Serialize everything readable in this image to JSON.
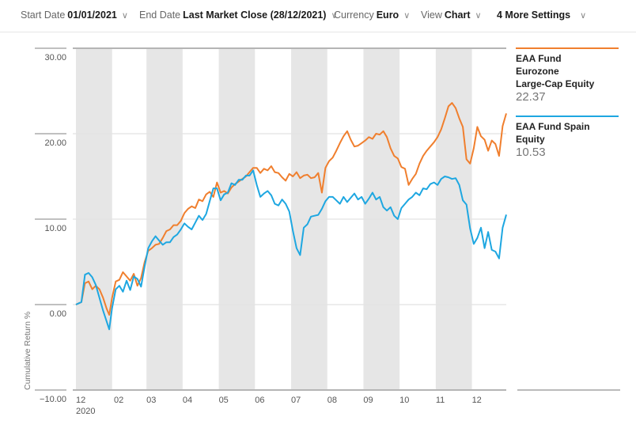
{
  "toolbar": {
    "start_date": {
      "label": "Start Date",
      "value": "01/01/2021"
    },
    "end_date": {
      "label": "End Date",
      "value": "Last Market Close (28/12/2021)"
    },
    "currency": {
      "label": "Currency",
      "value": "Euro"
    },
    "view": {
      "label": "View",
      "value": "Chart"
    },
    "more_settings": {
      "label": "4 More Settings"
    },
    "chevron": "∨"
  },
  "legend": [
    {
      "name": "EAA Fund Eurozone Large-Cap Equity",
      "name_lines": [
        "EAA Fund",
        "Eurozone",
        "Large-Cap Equity"
      ],
      "value": "22.37",
      "color": "#f07f2e"
    },
    {
      "name": "EAA Fund Spain Equity",
      "name_lines": [
        "EAA Fund Spain",
        "Equity"
      ],
      "value": "10.53",
      "color": "#1ea7e1"
    }
  ],
  "chart_data": {
    "type": "line",
    "title": "",
    "xlabel": "",
    "ylabel": "Cumulative Return %",
    "ylim": [
      -10,
      30
    ],
    "yticks": [
      "30.00",
      "20.00",
      "10.00",
      "0.00",
      "−10.00"
    ],
    "ytick_values": [
      30,
      20,
      10,
      0,
      -10
    ],
    "xticks": [
      "12",
      "02",
      "03",
      "04",
      "05",
      "06",
      "07",
      "08",
      "09",
      "10",
      "11",
      "12"
    ],
    "xtick_sublabel": "2020",
    "xtick_positions_months": [
      0,
      1.05,
      1.95,
      2.95,
      3.95,
      4.95,
      5.95,
      6.95,
      7.95,
      8.95,
      9.95,
      10.95
    ],
    "xlim_months": [
      0,
      11.9
    ],
    "shaded_months": [
      [
        0,
        1.0
      ],
      [
        1.95,
        2.95
      ],
      [
        3.95,
        4.95
      ],
      [
        5.95,
        6.95
      ],
      [
        7.95,
        8.95
      ],
      [
        9.95,
        10.95
      ]
    ],
    "grid": true,
    "legend_position": "right",
    "series": [
      {
        "name": "EAA Fund Eurozone Large-Cap Equity",
        "color": "#f07f2e",
        "x": [
          0,
          0.15,
          0.25,
          0.35,
          0.45,
          0.55,
          0.65,
          0.75,
          0.85,
          0.92,
          1.0,
          1.1,
          1.2,
          1.3,
          1.4,
          1.5,
          1.6,
          1.7,
          1.8,
          1.9,
          2.0,
          2.1,
          2.2,
          2.3,
          2.4,
          2.5,
          2.6,
          2.7,
          2.8,
          2.9,
          3.0,
          3.1,
          3.2,
          3.3,
          3.4,
          3.5,
          3.6,
          3.7,
          3.8,
          3.9,
          4.0,
          4.1,
          4.2,
          4.3,
          4.4,
          4.5,
          4.6,
          4.7,
          4.8,
          4.9,
          5.0,
          5.1,
          5.2,
          5.3,
          5.4,
          5.5,
          5.6,
          5.7,
          5.8,
          5.9,
          6.0,
          6.1,
          6.2,
          6.3,
          6.4,
          6.5,
          6.6,
          6.7,
          6.8,
          6.9,
          7.0,
          7.1,
          7.2,
          7.3,
          7.4,
          7.5,
          7.6,
          7.7,
          7.8,
          7.9,
          8.0,
          8.1,
          8.2,
          8.3,
          8.4,
          8.5,
          8.6,
          8.7,
          8.8,
          8.9,
          9.0,
          9.1,
          9.2,
          9.3,
          9.4,
          9.5,
          9.6,
          9.7,
          9.8,
          9.9,
          10.0,
          10.1,
          10.2,
          10.3,
          10.4,
          10.5,
          10.6,
          10.7,
          10.8,
          10.9,
          11.0,
          11.1,
          11.2,
          11.3,
          11.4,
          11.5,
          11.6,
          11.7,
          11.8,
          11.9
        ],
        "values": [
          0,
          0.3,
          2.5,
          2.7,
          1.8,
          2.2,
          1.8,
          0.8,
          -0.5,
          -1.2,
          0.8,
          2.7,
          2.9,
          3.8,
          3.3,
          2.8,
          3.6,
          2.2,
          3.1,
          5.0,
          6.3,
          6.6,
          7.0,
          7.1,
          7.8,
          8.6,
          8.8,
          9.3,
          9.3,
          9.8,
          10.7,
          11.2,
          11.5,
          11.3,
          12.3,
          12.1,
          12.9,
          13.2,
          12.6,
          14.3,
          13.1,
          13.3,
          13.0,
          13.7,
          14.1,
          14.4,
          14.7,
          15.0,
          15.5,
          16.0,
          16.0,
          15.4,
          15.9,
          15.7,
          16.2,
          15.5,
          15.4,
          14.9,
          14.5,
          15.3,
          15.0,
          15.5,
          14.8,
          15.1,
          15.2,
          14.8,
          14.9,
          15.4,
          13.1,
          16.0,
          16.8,
          17.2,
          18.0,
          18.9,
          19.7,
          20.3,
          19.3,
          18.5,
          18.6,
          18.9,
          19.2,
          19.6,
          19.4,
          20.0,
          19.9,
          20.3,
          19.6,
          18.3,
          17.4,
          17.1,
          16.1,
          15.9,
          14.0,
          14.7,
          15.3,
          16.5,
          17.4,
          18.0,
          18.5,
          19.0,
          19.6,
          20.5,
          21.8,
          23.2,
          23.6,
          23.0,
          21.8,
          20.8,
          17.0,
          16.5,
          18.3,
          20.8,
          19.7,
          19.3,
          18.0,
          19.2,
          18.8,
          17.4,
          20.9,
          22.37
        ]
      },
      {
        "name": "EAA Fund Spain Equity",
        "color": "#1ea7e1",
        "x": [
          0,
          0.15,
          0.25,
          0.35,
          0.45,
          0.55,
          0.65,
          0.75,
          0.85,
          0.92,
          1.0,
          1.1,
          1.2,
          1.3,
          1.4,
          1.5,
          1.6,
          1.7,
          1.8,
          1.9,
          2.0,
          2.1,
          2.2,
          2.3,
          2.4,
          2.5,
          2.6,
          2.7,
          2.8,
          2.9,
          3.0,
          3.1,
          3.2,
          3.3,
          3.4,
          3.5,
          3.6,
          3.7,
          3.8,
          3.9,
          4.0,
          4.1,
          4.2,
          4.3,
          4.4,
          4.5,
          4.6,
          4.7,
          4.8,
          4.9,
          5.0,
          5.1,
          5.2,
          5.3,
          5.4,
          5.5,
          5.6,
          5.7,
          5.8,
          5.9,
          6.0,
          6.1,
          6.2,
          6.3,
          6.4,
          6.5,
          6.6,
          6.7,
          6.8,
          6.9,
          7.0,
          7.1,
          7.2,
          7.3,
          7.4,
          7.5,
          7.6,
          7.7,
          7.8,
          7.9,
          8.0,
          8.1,
          8.2,
          8.3,
          8.4,
          8.5,
          8.6,
          8.7,
          8.8,
          8.9,
          9.0,
          9.1,
          9.2,
          9.3,
          9.4,
          9.5,
          9.6,
          9.7,
          9.8,
          9.9,
          10.0,
          10.1,
          10.2,
          10.3,
          10.4,
          10.5,
          10.6,
          10.7,
          10.8,
          10.9,
          11.0,
          11.1,
          11.2,
          11.3,
          11.4,
          11.5,
          11.6,
          11.7,
          11.8,
          11.9
        ],
        "values": [
          0,
          0.3,
          3.5,
          3.7,
          3.2,
          2.3,
          0.8,
          -0.7,
          -2.0,
          -2.9,
          -0.4,
          1.8,
          2.2,
          1.5,
          2.8,
          1.7,
          3.3,
          3.0,
          2.1,
          4.5,
          6.6,
          7.4,
          8.0,
          7.5,
          7.0,
          7.3,
          7.3,
          7.9,
          8.2,
          8.8,
          9.5,
          9.1,
          8.8,
          9.6,
          10.4,
          9.9,
          10.6,
          12.1,
          13.6,
          13.6,
          12.2,
          12.9,
          13.1,
          14.2,
          14.0,
          14.6,
          14.6,
          15.1,
          15.1,
          15.7,
          14.0,
          12.6,
          13.0,
          13.3,
          12.8,
          11.8,
          11.6,
          12.3,
          11.8,
          10.9,
          8.6,
          6.6,
          5.8,
          9.0,
          9.4,
          10.3,
          10.4,
          10.5,
          11.2,
          12.1,
          12.6,
          12.6,
          12.2,
          11.8,
          12.6,
          12.0,
          12.5,
          13.0,
          12.3,
          12.6,
          11.8,
          12.4,
          13.1,
          12.3,
          12.6,
          11.4,
          11.0,
          11.4,
          10.4,
          10.0,
          11.3,
          11.8,
          12.3,
          12.6,
          13.1,
          12.8,
          13.6,
          13.5,
          14.1,
          14.3,
          14.0,
          14.7,
          15.0,
          14.9,
          14.7,
          14.8,
          14.0,
          12.2,
          11.7,
          8.9,
          7.1,
          7.8,
          9.0,
          6.6,
          8.5,
          6.4,
          6.2,
          5.4,
          9.0,
          10.53
        ]
      }
    ]
  }
}
